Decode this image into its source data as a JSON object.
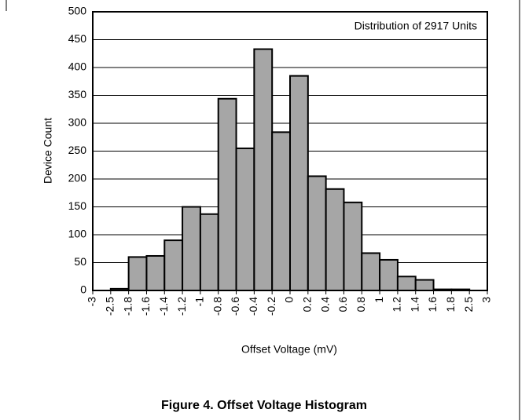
{
  "chart_data": {
    "type": "histogram",
    "title": "Distribution of 2917 Units",
    "caption": "Figure 4. Offset Voltage Histogram",
    "xlabel": "Offset Voltage (mV)",
    "ylabel": "Device Count",
    "bins": [
      -3,
      -2.5,
      -1.8,
      -1.6,
      -1.4,
      -1.2,
      -1,
      -0.8,
      -0.6,
      -0.4,
      -0.2,
      0,
      0.2,
      0.4,
      0.6,
      0.8,
      1,
      1.2,
      1.4,
      1.6,
      1.8,
      2.5,
      3
    ],
    "values": [
      0,
      3,
      60,
      62,
      90,
      150,
      137,
      344,
      255,
      433,
      284,
      385,
      205,
      182,
      158,
      67,
      55,
      25,
      19,
      2,
      2,
      0
    ],
    "color": "#a6a6a6",
    "ylim": [
      0,
      500
    ],
    "yticks": [
      0,
      50,
      100,
      150,
      200,
      250,
      300,
      350,
      400,
      450,
      500
    ],
    "grid": true
  }
}
